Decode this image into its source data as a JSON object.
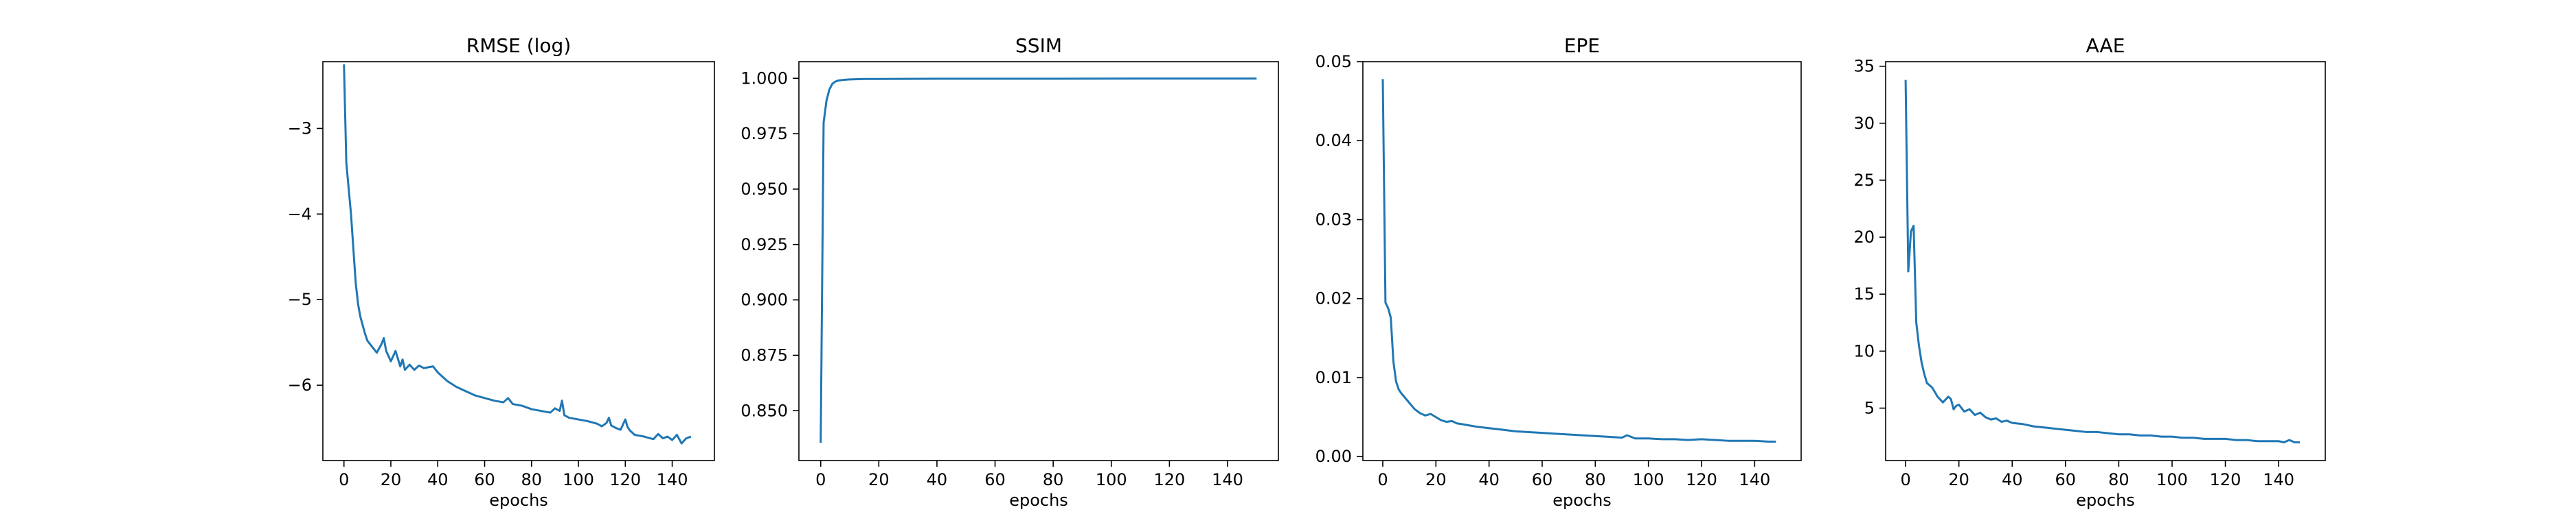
{
  "colors": {
    "line": "#1f77b4",
    "axes": "#000000",
    "background": "#ffffff"
  },
  "chart_data": [
    {
      "type": "line",
      "title": "RMSE (log)",
      "xlabel": "epochs",
      "ylabel": "",
      "xlim": [
        -9,
        158
      ],
      "ylim": [
        -6.88,
        -2.22
      ],
      "xticks": [
        0,
        20,
        40,
        60,
        80,
        100,
        120,
        140
      ],
      "yticks": [
        -3,
        -4,
        -5,
        -6
      ],
      "grid": false,
      "legend": "none",
      "series": [
        {
          "x": [
            0,
            1,
            2,
            3,
            4,
            5,
            6,
            7,
            8,
            9,
            10,
            12,
            14,
            16,
            17,
            18,
            19,
            20,
            22,
            24,
            25,
            26,
            28,
            30,
            32,
            34,
            36,
            38,
            40,
            44,
            48,
            52,
            56,
            60,
            64,
            68,
            70,
            72,
            76,
            80,
            84,
            88,
            90,
            92,
            93,
            94,
            96,
            100,
            104,
            108,
            110,
            112,
            113,
            114,
            116,
            118,
            120,
            121,
            122,
            124,
            128,
            132,
            134,
            136,
            138,
            140,
            142,
            144,
            146,
            148
          ],
          "y": [
            -2.25,
            -3.4,
            -3.7,
            -4.0,
            -4.4,
            -4.8,
            -5.05,
            -5.2,
            -5.3,
            -5.4,
            -5.48,
            -5.55,
            -5.62,
            -5.52,
            -5.45,
            -5.6,
            -5.66,
            -5.72,
            -5.6,
            -5.78,
            -5.7,
            -5.82,
            -5.76,
            -5.82,
            -5.77,
            -5.8,
            -5.79,
            -5.78,
            -5.85,
            -5.95,
            -6.02,
            -6.07,
            -6.12,
            -6.15,
            -6.18,
            -6.2,
            -6.15,
            -6.22,
            -6.24,
            -6.28,
            -6.3,
            -6.32,
            -6.27,
            -6.3,
            -6.18,
            -6.35,
            -6.38,
            -6.4,
            -6.42,
            -6.45,
            -6.48,
            -6.44,
            -6.38,
            -6.47,
            -6.5,
            -6.52,
            -6.4,
            -6.49,
            -6.53,
            -6.58,
            -6.6,
            -6.63,
            -6.57,
            -6.62,
            -6.6,
            -6.64,
            -6.58,
            -6.68,
            -6.62,
            -6.6
          ]
        }
      ]
    },
    {
      "type": "line",
      "title": "SSIM",
      "xlabel": "epochs",
      "ylabel": "",
      "xlim": [
        -7.5,
        157.5
      ],
      "ylim": [
        0.8275,
        1.0075
      ],
      "xticks": [
        0,
        20,
        40,
        60,
        80,
        100,
        120,
        140
      ],
      "yticks": [
        1.0,
        0.975,
        0.95,
        0.925,
        0.9,
        0.875,
        0.85
      ],
      "grid": false,
      "legend": "none",
      "series": [
        {
          "x": [
            0,
            1,
            2,
            3,
            4,
            5,
            6,
            8,
            10,
            15,
            20,
            40,
            80,
            120,
            150
          ],
          "y": [
            0.8355,
            0.98,
            0.99,
            0.995,
            0.9975,
            0.9985,
            0.999,
            0.9993,
            0.9995,
            0.9997,
            0.9997,
            0.9998,
            0.9998,
            0.9999,
            0.9999
          ]
        }
      ]
    },
    {
      "type": "line",
      "title": "EPE",
      "xlabel": "epochs",
      "ylabel": "",
      "xlim": [
        -7.5,
        157.5
      ],
      "ylim": [
        -0.0005,
        0.05
      ],
      "xticks": [
        0,
        20,
        40,
        60,
        80,
        100,
        120,
        140
      ],
      "yticks": [
        0.0,
        0.01,
        0.02,
        0.03,
        0.04,
        0.05
      ],
      "grid": false,
      "legend": "none",
      "series": [
        {
          "x": [
            0,
            1,
            2,
            3,
            4,
            5,
            6,
            7,
            8,
            10,
            12,
            14,
            16,
            18,
            20,
            22,
            24,
            26,
            28,
            30,
            35,
            40,
            45,
            50,
            55,
            60,
            65,
            70,
            75,
            80,
            85,
            90,
            92,
            95,
            100,
            105,
            110,
            115,
            120,
            125,
            130,
            135,
            140,
            145,
            148
          ],
          "y": [
            0.0478,
            0.0195,
            0.0188,
            0.0176,
            0.012,
            0.0095,
            0.0085,
            0.008,
            0.0076,
            0.0068,
            0.006,
            0.0055,
            0.0052,
            0.0054,
            0.005,
            0.0046,
            0.0044,
            0.0045,
            0.0042,
            0.0041,
            0.0038,
            0.0036,
            0.0034,
            0.0032,
            0.0031,
            0.003,
            0.0029,
            0.0028,
            0.0027,
            0.0026,
            0.0025,
            0.0024,
            0.0027,
            0.0023,
            0.0023,
            0.0022,
            0.0022,
            0.0021,
            0.0022,
            0.0021,
            0.002,
            0.002,
            0.002,
            0.0019,
            0.0019
          ]
        }
      ]
    },
    {
      "type": "line",
      "title": "AAE",
      "xlabel": "epochs",
      "ylabel": "",
      "xlim": [
        -7.5,
        157.5
      ],
      "ylim": [
        0.4,
        35.4
      ],
      "xticks": [
        0,
        20,
        40,
        60,
        80,
        100,
        120,
        140
      ],
      "yticks": [
        5,
        10,
        15,
        20,
        25,
        30,
        35
      ],
      "grid": false,
      "legend": "none",
      "series": [
        {
          "x": [
            0,
            1,
            2,
            3,
            4,
            5,
            6,
            7,
            8,
            9,
            10,
            12,
            14,
            16,
            17,
            18,
            19,
            20,
            22,
            24,
            26,
            28,
            30,
            32,
            34,
            36,
            38,
            40,
            44,
            48,
            52,
            56,
            60,
            64,
            68,
            72,
            76,
            80,
            84,
            88,
            92,
            96,
            100,
            104,
            108,
            112,
            116,
            120,
            124,
            128,
            132,
            136,
            140,
            142,
            144,
            146,
            148
          ],
          "y": [
            33.8,
            17.0,
            20.5,
            21.0,
            12.5,
            10.5,
            9.0,
            8.0,
            7.2,
            7.0,
            6.8,
            6.0,
            5.5,
            6.0,
            5.8,
            4.9,
            5.2,
            5.3,
            4.7,
            4.9,
            4.4,
            4.6,
            4.2,
            4.0,
            4.1,
            3.8,
            3.9,
            3.7,
            3.6,
            3.4,
            3.3,
            3.2,
            3.1,
            3.0,
            2.9,
            2.9,
            2.8,
            2.7,
            2.7,
            2.6,
            2.6,
            2.5,
            2.5,
            2.4,
            2.4,
            2.3,
            2.3,
            2.3,
            2.2,
            2.2,
            2.1,
            2.1,
            2.1,
            2.0,
            2.2,
            2.0,
            2.0
          ]
        }
      ]
    }
  ]
}
